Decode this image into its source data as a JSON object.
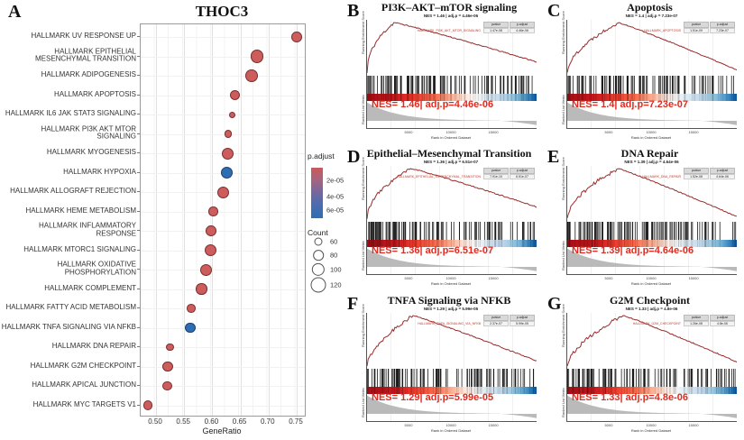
{
  "colors": {
    "dot_red": "#cd5c5c",
    "dot_red_border": "#7a2f2f",
    "dot_blue": "#2e6db4",
    "dot_blue_border": "#1d3f6e",
    "es_curve": "#9a2b2b",
    "nes_text": "#e02b20",
    "barcode": "#1a1a1a",
    "metric_gray": "#b3b3b3"
  },
  "gsea_common": {
    "pvalue_header": "pvalue",
    "padjust_header": "p.adjust",
    "y_label_top": "Running Enrichment Score",
    "y_label_bottom": "Ranked List Metric",
    "x_label": "Rank in Ordered Dataset",
    "x_ticks": [
      "5000",
      "10000",
      "15000"
    ]
  },
  "chart_data": [
    {
      "type": "scatter",
      "panel": "A",
      "title": "THOC3",
      "xlabel": "GeneRatio",
      "xlim": [
        0.473,
        0.765
      ],
      "x_ticks": [
        "0.50",
        "0.55",
        "0.60",
        "0.65",
        "0.70",
        "0.75"
      ],
      "legend": {
        "p_adjust_title": "p.adjust",
        "p_adjust_ticks": [
          "2e-05",
          "4e-05",
          "6e-05"
        ],
        "count_title": "Count",
        "count_items": [
          {
            "label": "60",
            "count": 60
          },
          {
            "label": "80",
            "count": 80
          },
          {
            "label": "100",
            "count": 100
          },
          {
            "label": "120",
            "count": 120
          }
        ]
      },
      "pathways": [
        {
          "name": "HALLMARK UV RESPONSE UP",
          "gene_ratio": 0.75,
          "count": 95,
          "p_adjust": 5e-06
        },
        {
          "name": "HALLMARK EPITHELIAL MESENCHYMAL TRANSITION",
          "gene_ratio": 0.68,
          "count": 115,
          "p_adjust": 1e-06
        },
        {
          "name": "HALLMARK ADIPOGENESIS",
          "gene_ratio": 0.67,
          "count": 110,
          "p_adjust": 1e-06
        },
        {
          "name": "HALLMARK APOPTOSIS",
          "gene_ratio": 0.64,
          "count": 90,
          "p_adjust": 1e-06
        },
        {
          "name": "HALLMARK IL6 JAK STAT3 SIGNALING",
          "gene_ratio": 0.635,
          "count": 60,
          "p_adjust": 2e-05
        },
        {
          "name": "HALLMARK PI3K AKT MTOR SIGNALING",
          "gene_ratio": 0.628,
          "count": 70,
          "p_adjust": 1e-05
        },
        {
          "name": "HALLMARK MYOGENESIS",
          "gene_ratio": 0.627,
          "count": 105,
          "p_adjust": 5e-06
        },
        {
          "name": "HALLMARK HYPOXIA",
          "gene_ratio": 0.625,
          "count": 105,
          "p_adjust": 6e-05
        },
        {
          "name": "HALLMARK ALLOGRAFT REJECTION",
          "gene_ratio": 0.619,
          "count": 105,
          "p_adjust": 5e-06
        },
        {
          "name": "HALLMARK HEME METABOLISM",
          "gene_ratio": 0.602,
          "count": 85,
          "p_adjust": 1e-05
        },
        {
          "name": "HALLMARK INFLAMMATORY RESPONSE",
          "gene_ratio": 0.598,
          "count": 95,
          "p_adjust": 5e-06
        },
        {
          "name": "HALLMARK MTORC1 SIGNALING",
          "gene_ratio": 0.597,
          "count": 105,
          "p_adjust": 5e-06
        },
        {
          "name": "HALLMARK OXIDATIVE PHOSPHORYLATION",
          "gene_ratio": 0.589,
          "count": 105,
          "p_adjust": 5e-06
        },
        {
          "name": "HALLMARK COMPLEMENT",
          "gene_ratio": 0.581,
          "count": 100,
          "p_adjust": 5e-06
        },
        {
          "name": "HALLMARK FATTY ACID METABOLISM",
          "gene_ratio": 0.563,
          "count": 80,
          "p_adjust": 1e-05
        },
        {
          "name": "HALLMARK TNFA SIGNALING VIA NFKB",
          "gene_ratio": 0.561,
          "count": 95,
          "p_adjust": 6e-05
        },
        {
          "name": "HALLMARK DNA REPAIR",
          "gene_ratio": 0.525,
          "count": 70,
          "p_adjust": 1e-05
        },
        {
          "name": "HALLMARK G2M CHECKPOINT",
          "gene_ratio": 0.521,
          "count": 95,
          "p_adjust": 8e-06
        },
        {
          "name": "HALLMARK APICAL JUNCTION",
          "gene_ratio": 0.52,
          "count": 85,
          "p_adjust": 8e-06
        },
        {
          "name": "HALLMARK MYC TARGETS V1",
          "gene_ratio": 0.486,
          "count": 85,
          "p_adjust": 5e-06
        }
      ]
    },
    {
      "type": "line",
      "panel": "B",
      "title": "PI3K–AKT–mTOR signaling",
      "subtitle": "NES = 1.46  |  adj.p = 4.46e-06",
      "gene_set": "HALLMARK_PI3K_AKT_MTOR_SIGNALING",
      "pvalue": "1.47e-08",
      "p_adjust": "4.46e-06",
      "nes": 1.46,
      "nes_label": "NES= 1.46| adj.p=4.46e-06",
      "curve_peak": 0.16,
      "curve_end": 0.22,
      "rise_exp": 0.45,
      "seed": 11
    },
    {
      "type": "line",
      "panel": "C",
      "title": "Apoptosis",
      "subtitle": "NES = 1.4  |  adj.p = 7.23e-07",
      "gene_set": "HALLMARK_APOPTOSIS",
      "pvalue": "1.51e-09",
      "p_adjust": "7.23e-07",
      "nes": 1.4,
      "nes_label": "NES= 1.4| adj.p=7.23e-07",
      "curve_peak": 0.3,
      "curve_end": 0.06,
      "rise_exp": 0.55,
      "seed": 22
    },
    {
      "type": "line",
      "panel": "D",
      "title": "Epithelial–Mesenchymal Transition",
      "subtitle": "NES = 1.36  |  adj.p = 6.51e-07",
      "gene_set": "HALLMARK_EPITHELIAL_MESENCHYMAL_TRANSITION",
      "pvalue": "7.91e-10",
      "p_adjust": "6.51e-07",
      "nes": 1.36,
      "nes_label": "NES= 1.36| adj.p=6.51e-07",
      "curve_peak": 0.26,
      "curve_end": 0.24,
      "rise_exp": 0.5,
      "seed": 33
    },
    {
      "type": "line",
      "panel": "E",
      "title": "DNA Repair",
      "subtitle": "NES = 1.39  |  adj.p = 4.64e-06",
      "gene_set": "HALLMARK_DNA_REPAIR",
      "pvalue": "1.52e-08",
      "p_adjust": "4.64e-06",
      "nes": 1.39,
      "nes_label": "NES= 1.39| adj.p=4.64e-06",
      "curve_peak": 0.3,
      "curve_end": 0.05,
      "rise_exp": 0.55,
      "seed": 44
    },
    {
      "type": "line",
      "panel": "F",
      "title": "TNFA Signaling via NFKB",
      "subtitle": "NES = 1.29  |  adj.p = 5.99e-05",
      "gene_set": "HALLMARK_TNFA_SIGNALING_VIA_NFKB",
      "pvalue": "2.37e-07",
      "p_adjust": "5.99e-05",
      "nes": 1.29,
      "nes_label": "NES= 1.29| adj.p=5.99e-05",
      "curve_peak": 0.27,
      "curve_end": 0.1,
      "rise_exp": 0.6,
      "seed": 55
    },
    {
      "type": "line",
      "panel": "G",
      "title": "G2M Checkpoint",
      "subtitle": "NES = 1.33  |  adj.p = 4.8e-06",
      "gene_set": "HALLMARK_G2M_CHECKPOINT",
      "pvalue": "1.26e-08",
      "p_adjust": "4.8e-06",
      "nes": 1.33,
      "nes_label": "NES= 1.33| adj.p=4.8e-06",
      "curve_peak": 0.33,
      "curve_end": 0.08,
      "rise_exp": 0.6,
      "seed": 66
    }
  ]
}
